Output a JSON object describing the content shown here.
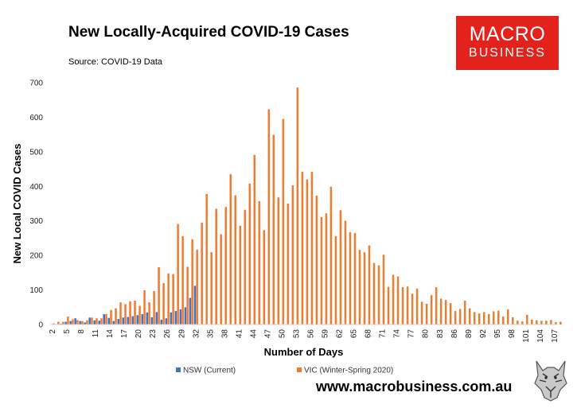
{
  "header": {
    "title": "New Locally-Acquired COVID-19 Cases",
    "source": "Source: COVID-19 Data"
  },
  "logo": {
    "line1": "MACRO",
    "line2": "BUSINESS"
  },
  "footer": {
    "url": "www.macrobusiness.com.au"
  },
  "chart_data": {
    "type": "bar",
    "title": "New Locally-Acquired COVID-19 Cases",
    "xlabel": "Number of Days",
    "ylabel": "New Local COVID Cases",
    "ylim": [
      0,
      700
    ],
    "yticks": [
      0,
      100,
      200,
      300,
      400,
      500,
      600,
      700
    ],
    "x_start": 2,
    "x_end": 107,
    "x_tick_step": 3,
    "grid": false,
    "legend_position": "bottom",
    "colors": {
      "NSW (Current)": "#4472c4",
      "VIC (Winter-Spring 2020)": "#ed7d31"
    },
    "series": [
      {
        "name": "NSW (Current)",
        "start_day": 2,
        "values": [
          0,
          1,
          2,
          8,
          10,
          18,
          10,
          6,
          20,
          12,
          11,
          30,
          19,
          10,
          16,
          20,
          22,
          24,
          27,
          30,
          35,
          21,
          36,
          14,
          18,
          35,
          39,
          44,
          50,
          77,
          112
        ]
      },
      {
        "name": "VIC (Winter-Spring 2020)",
        "start_day": 2,
        "values": [
          3,
          8,
          8,
          23,
          15,
          13,
          10,
          12,
          20,
          18,
          18,
          30,
          42,
          47,
          64,
          59,
          67,
          69,
          54,
          99,
          64,
          97,
          166,
          120,
          148,
          146,
          291,
          256,
          167,
          247,
          217,
          295,
          378,
          209,
          335,
          261,
          340,
          435,
          374,
          286,
          332,
          408,
          491,
          357,
          273,
          623,
          549,
          368,
          595,
          350,
          403,
          686,
          442,
          420,
          442,
          373,
          311,
          322,
          399,
          256,
          331,
          300,
          267,
          265,
          216,
          209,
          229,
          178,
          171,
          202,
          109,
          144,
          139,
          108,
          110,
          89,
          104,
          66,
          60,
          85,
          108,
          75,
          71,
          62,
          39,
          45,
          69,
          47,
          36,
          32,
          36,
          30,
          38,
          40,
          23,
          44,
          21,
          11,
          9,
          28,
          14,
          12,
          11,
          11,
          13,
          7,
          8
        ]
      }
    ]
  }
}
